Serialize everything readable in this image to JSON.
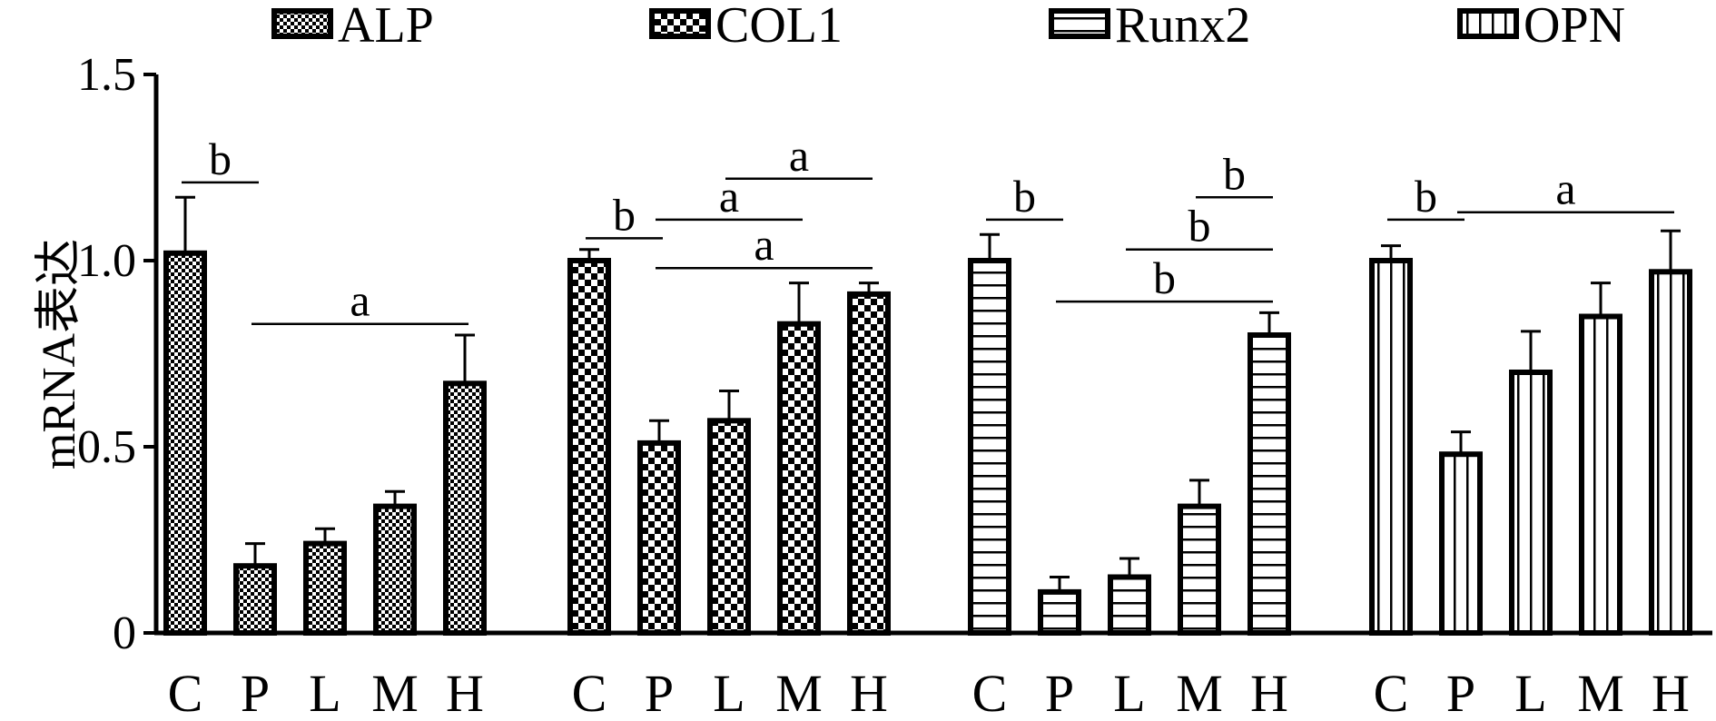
{
  "chart_data": {
    "type": "bar",
    "ylabel": "mRNA表达",
    "ylim": [
      0,
      1.5
    ],
    "yticks": [
      "0",
      "0.5",
      "1.0",
      "1.5"
    ],
    "categories": [
      "C",
      "P",
      "L",
      "M",
      "H"
    ],
    "legend_placement": "top",
    "series": [
      {
        "name": "ALP",
        "pattern": "fine-checker",
        "values": [
          1.02,
          0.18,
          0.24,
          0.34,
          0.67
        ],
        "errors": [
          0.15,
          0.06,
          0.04,
          0.04,
          0.13
        ],
        "annotations": [
          {
            "label": "b",
            "from": "C",
            "to": "P",
            "y": 1.21
          },
          {
            "label": "a",
            "from": "P",
            "to": "H",
            "y": 0.83
          }
        ]
      },
      {
        "name": "COL1",
        "pattern": "coarse-checker",
        "values": [
          1.0,
          0.51,
          0.57,
          0.83,
          0.91
        ],
        "errors": [
          0.03,
          0.06,
          0.08,
          0.11,
          0.03
        ],
        "annotations": [
          {
            "label": "b",
            "from": "C",
            "to": "P",
            "y": 1.06
          },
          {
            "label": "a",
            "from": "P",
            "to": "M",
            "y": 1.11
          },
          {
            "label": "a",
            "from": "L",
            "to": "H",
            "y": 1.22
          },
          {
            "label": "a",
            "from": "P",
            "to": "H",
            "y": 0.98
          }
        ]
      },
      {
        "name": "Runx2",
        "pattern": "horizontal-lines",
        "values": [
          1.0,
          0.11,
          0.15,
          0.34,
          0.8
        ],
        "errors": [
          0.07,
          0.04,
          0.05,
          0.07,
          0.06
        ],
        "annotations": [
          {
            "label": "b",
            "from": "C",
            "to": "P",
            "y": 1.11
          },
          {
            "label": "b",
            "from": "M",
            "to": "H",
            "y": 1.17
          },
          {
            "label": "b",
            "from": "L",
            "to": "H",
            "y": 1.03
          },
          {
            "label": "b",
            "from": "P",
            "to": "H",
            "y": 0.89
          }
        ]
      },
      {
        "name": "OPN",
        "pattern": "vertical-lines",
        "values": [
          1.0,
          0.48,
          0.7,
          0.85,
          0.97
        ],
        "errors": [
          0.04,
          0.06,
          0.11,
          0.09,
          0.11
        ],
        "annotations": [
          {
            "label": "b",
            "from": "C",
            "to": "P",
            "y": 1.11
          },
          {
            "label": "a",
            "from": "P",
            "to": "H",
            "y": 1.13
          }
        ]
      }
    ]
  }
}
